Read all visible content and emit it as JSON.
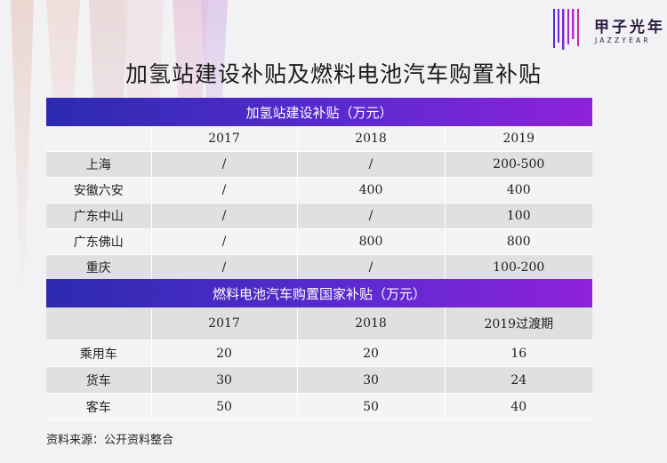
{
  "logo": {
    "name_cn": "甲子光年",
    "name_en": "JAZZYEAR",
    "colors": {
      "bar_a": "#5a2bd6",
      "bar_b": "#9a2ad8",
      "bar_c": "#c72bb8"
    }
  },
  "title": "加氢站建设补贴及燃料电池汽车购置补贴",
  "table1": {
    "banner": "加氢站建设补贴（万元）",
    "header": [
      "",
      "2017",
      "2018",
      "2019"
    ],
    "rows": [
      [
        "上海",
        "/",
        "/",
        "200-500"
      ],
      [
        "安徽六安",
        "/",
        "400",
        "400"
      ],
      [
        "广东中山",
        "/",
        "/",
        "100"
      ],
      [
        "广东佛山",
        "/",
        "800",
        "800"
      ],
      [
        "重庆",
        "/",
        "/",
        "100-200"
      ]
    ]
  },
  "table2": {
    "banner": "燃料电池汽车购置国家补贴（万元）",
    "header": [
      "",
      "2017",
      "2018",
      "2019过渡期"
    ],
    "rows": [
      [
        "乘用车",
        "20",
        "20",
        "16"
      ],
      [
        "货车",
        "30",
        "30",
        "24"
      ],
      [
        "客车",
        "50",
        "50",
        "40"
      ]
    ]
  },
  "source": "资料来源：公开资料整合",
  "colors": {
    "banner_start": "#2c2ab0",
    "banner_end": "#8e22d8",
    "row_gray": "#e0dfe2",
    "row_light": "#f4f3f5",
    "background": "#f2f1f4"
  }
}
